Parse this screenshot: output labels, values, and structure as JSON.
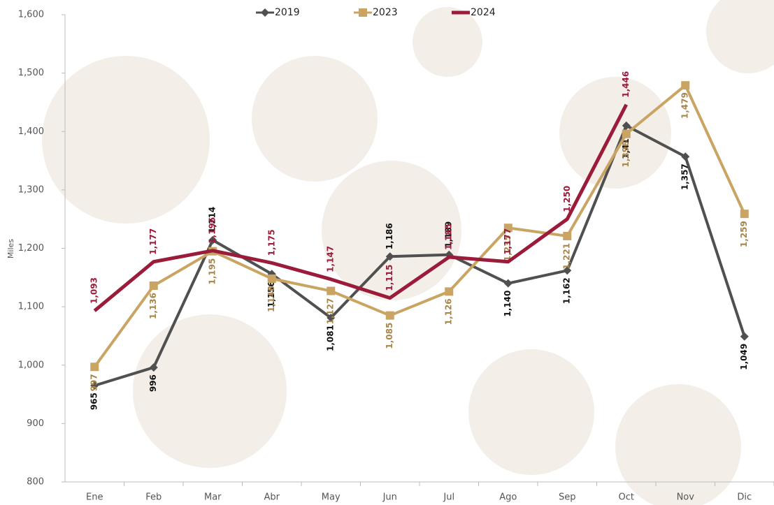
{
  "chart_data": {
    "type": "line",
    "y_label": "Miles",
    "categories": [
      "Ene",
      "Feb",
      "Mar",
      "Abr",
      "May",
      "Jun",
      "Jul",
      "Ago",
      "Sep",
      "Oct",
      "Nov",
      "Dic"
    ],
    "ylim": [
      800,
      1600
    ],
    "yticks": [
      800,
      900,
      {
        "value": 1000,
        "label": "1,000"
      },
      {
        "value": 1100,
        "label": "1,100"
      },
      {
        "value": 1200,
        "label": "1,200"
      },
      {
        "value": 1300,
        "label": "1,300"
      },
      {
        "value": 1400,
        "label": "1,400"
      },
      {
        "value": 1500,
        "label": "1,500"
      },
      {
        "value": 1600,
        "label": "1,600"
      }
    ],
    "legend": "top",
    "series": [
      {
        "name": "2019",
        "color": "#505050",
        "marker": "diamond",
        "values": [
          965,
          996,
          1214,
          1156,
          1081,
          1186,
          1189,
          1140,
          1162,
          1410,
          1357,
          1049
        ],
        "value_labels": [
          "965",
          "996",
          "1,214",
          "1,156",
          "1,081",
          "1,186",
          "1,189",
          "1,140",
          "1,162",
          "1,410",
          "1,357",
          "1,049"
        ]
      },
      {
        "name": "2023",
        "color": "#c9a463",
        "marker": "square",
        "values": [
          997,
          1136,
          1195,
          1148,
          1127,
          1085,
          1126,
          1235,
          1221,
          1396,
          1479,
          1259
        ],
        "value_labels": [
          "997",
          "1,136",
          "1,195",
          "1,148",
          "1,127",
          "1,085",
          "1,126",
          "1,235",
          "1,221",
          "1,396",
          "1,479",
          "1,259"
        ]
      },
      {
        "name": "2024",
        "color": "#9b1b3a",
        "marker": "none",
        "values": [
          1093,
          1177,
          1196,
          1175,
          1147,
          1115,
          1185,
          1177,
          1250,
          1446,
          null,
          null
        ],
        "value_labels": [
          "1,093",
          "1,177",
          "1,196",
          "1,175",
          "1,147",
          "1,115",
          "1,185",
          "1,177",
          "1,250",
          "1,446",
          null,
          null
        ]
      }
    ]
  }
}
